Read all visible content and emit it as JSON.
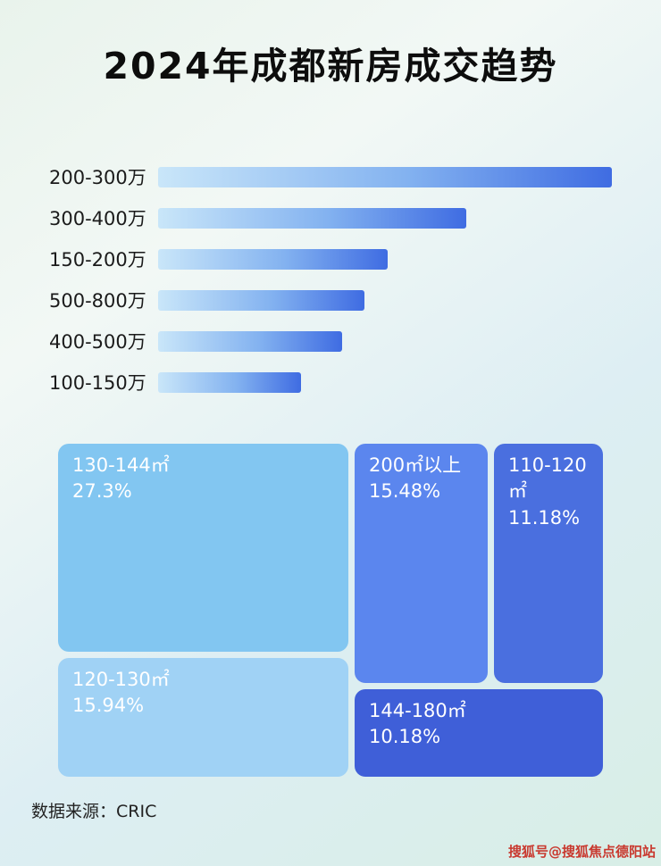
{
  "page": {
    "title": "2024年成都新房成交趋势",
    "source": "数据来源：CRIC",
    "watermark": "搜狐号@搜狐焦点德阳站"
  },
  "chart_data": [
    {
      "type": "bar",
      "orientation": "horizontal",
      "title": "2024年成都新房成交趋势",
      "categories": [
        "200-300万",
        "300-400万",
        "150-200万",
        "500-800万",
        "400-500万",
        "100-150万"
      ],
      "values_relative_pct": [
        100,
        68,
        50.5,
        45.4,
        40.6,
        31.5
      ],
      "note": "bar lengths relative to longest bar; absolute values not labeled in image",
      "bar_gradient": [
        "#c9e6f9",
        "#3f6ce2"
      ],
      "grid": false,
      "legend": false
    },
    {
      "type": "treemap",
      "items": [
        {
          "label": "130-144㎡",
          "percent": 27.3,
          "percent_label": "27.3%",
          "color": "#82c6f1"
        },
        {
          "label": "200㎡以上",
          "percent": 15.48,
          "percent_label": "15.48%",
          "color": "#5b86ee"
        },
        {
          "label": "110-120㎡",
          "percent": 11.18,
          "percent_label": "11.18%",
          "color": "#4a6fdf"
        },
        {
          "label": "120-130㎡",
          "percent": 15.94,
          "percent_label": "15.94%",
          "color": "#a0d2f5"
        },
        {
          "label": "144-180㎡",
          "percent": 10.18,
          "percent_label": "10.18%",
          "color": "#3f5fd8"
        }
      ]
    }
  ]
}
